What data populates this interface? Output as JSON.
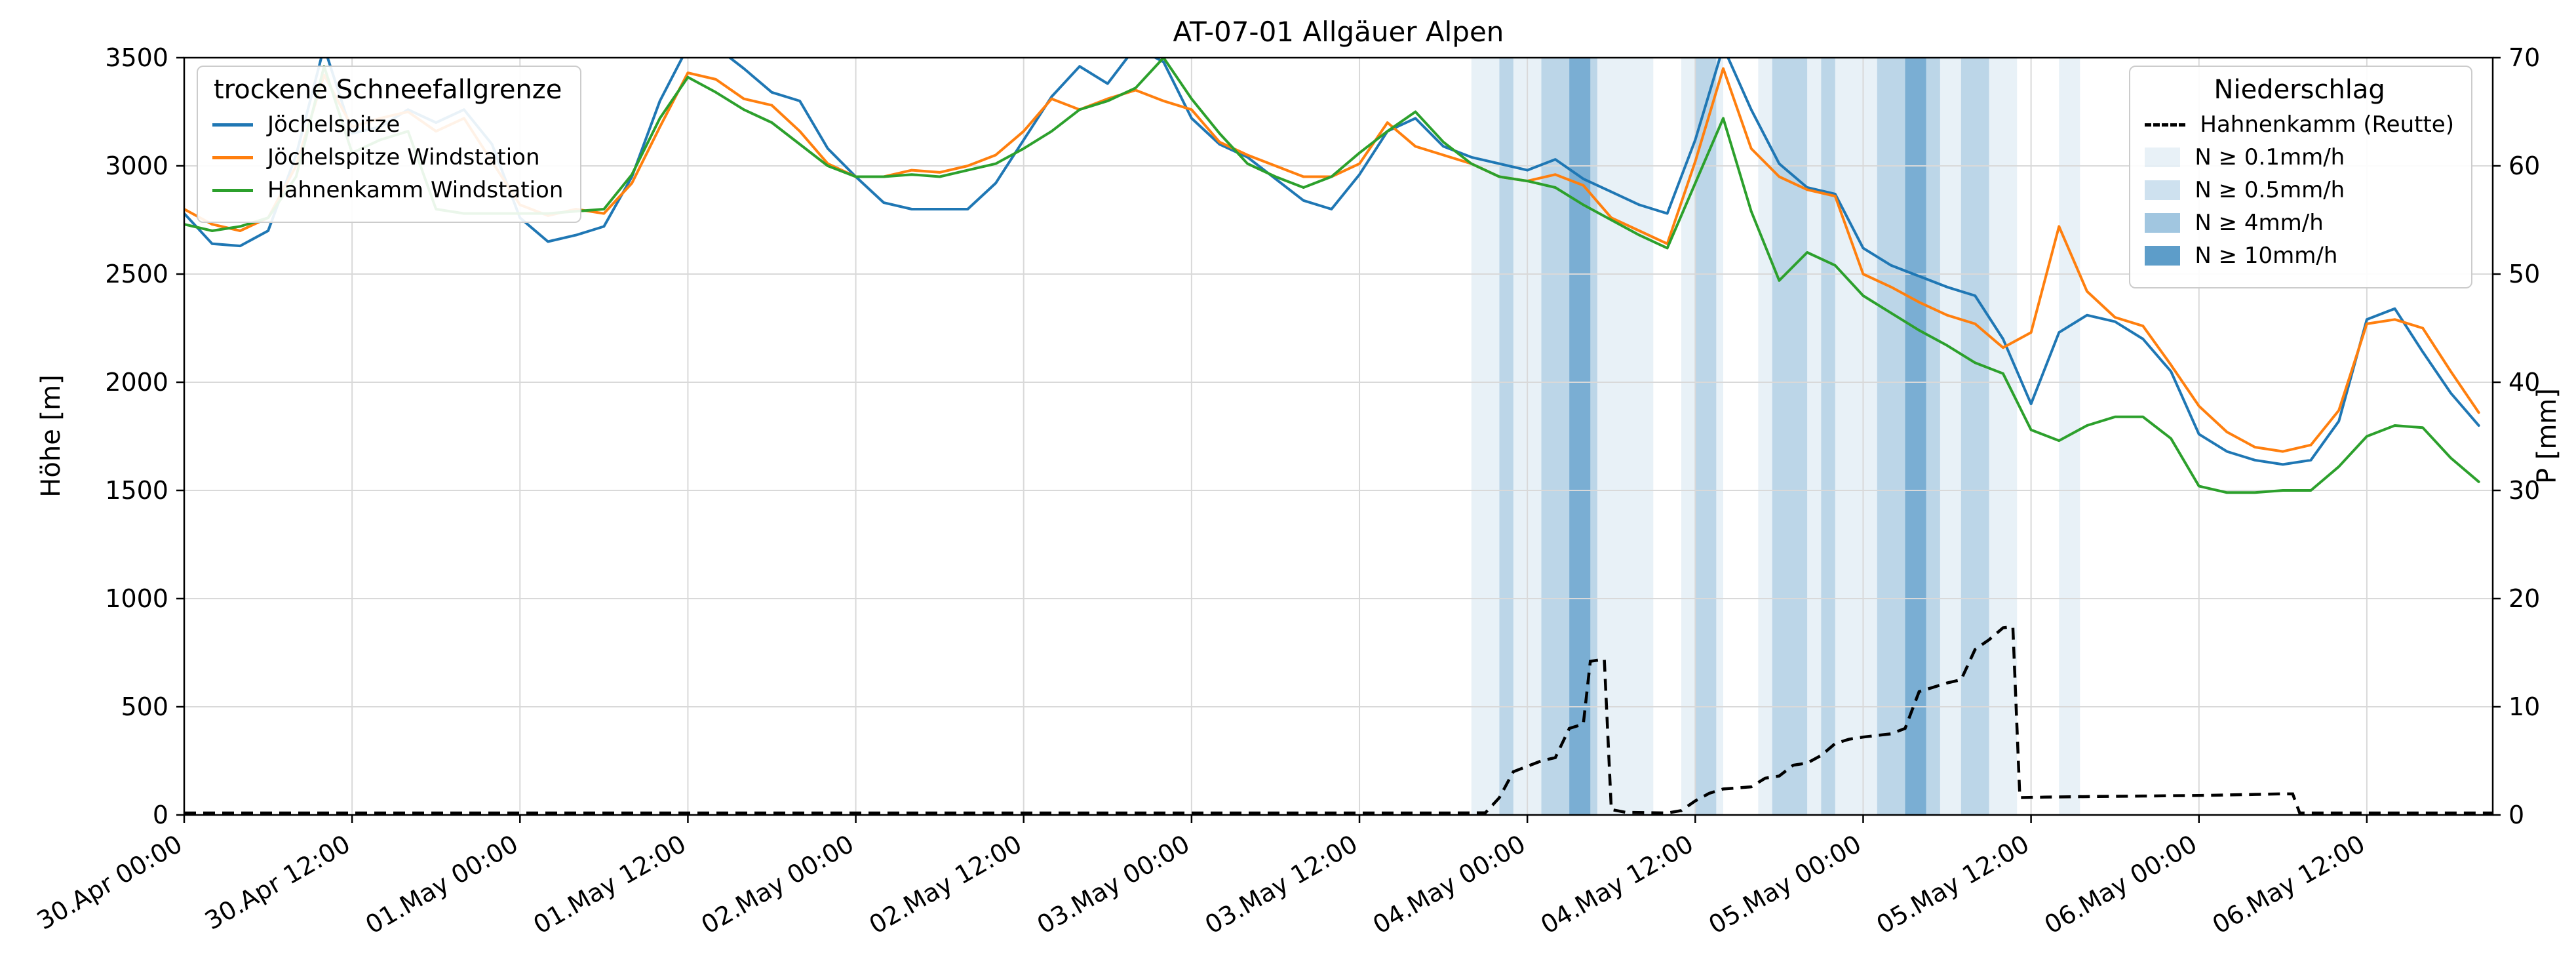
{
  "title": "AT-07-01 Allgäuer Alpen",
  "axes": {
    "y_left_label": "Höhe [m]",
    "y_right_label": "P [mm]",
    "y_left_range": [
      0,
      3500
    ],
    "y_right_range": [
      0,
      70
    ],
    "x_range": [
      0,
      165
    ],
    "y_left_ticks": [
      0,
      500,
      1000,
      1500,
      2000,
      2500,
      3000,
      3500
    ],
    "y_right_ticks": [
      0,
      10,
      20,
      30,
      40,
      50,
      60,
      70
    ],
    "x_tick_hours": [
      0,
      12,
      24,
      36,
      48,
      60,
      72,
      84,
      96,
      108,
      120,
      132,
      144,
      156
    ],
    "x_tick_labels": [
      "30.Apr 00:00",
      "30.Apr 12:00",
      "01.May 00:00",
      "01.May 12:00",
      "02.May 00:00",
      "02.May 12:00",
      "03.May 00:00",
      "03.May 12:00",
      "04.May 00:00",
      "04.May 12:00",
      "05.May 00:00",
      "05.May 12:00",
      "06.May 00:00",
      "06.May 12:00"
    ],
    "grid_color": "#d9d9d9"
  },
  "legend_left": {
    "title": "trockene Schneefallgrenze",
    "entries": [
      {
        "label": "Jöchelspitze",
        "color": "#1f77b4",
        "swatch": "line"
      },
      {
        "label": "Jöchelspitze Windstation",
        "color": "#ff7f0e",
        "swatch": "line"
      },
      {
        "label": "Hahnenkamm Windstation",
        "color": "#2ca02c",
        "swatch": "line"
      }
    ]
  },
  "legend_right": {
    "title": "Niederschlag",
    "entries": [
      {
        "label": "Hahnenkamm (Reutte)",
        "swatch": "dashed",
        "color": "#000000"
      },
      {
        "label": "N ≥ 0.1mm/h",
        "swatch": "patch",
        "level": "0.1"
      },
      {
        "label": "N ≥ 0.5mm/h",
        "swatch": "patch",
        "level": "0.5"
      },
      {
        "label": "N ≥ 4mm/h",
        "swatch": "patch",
        "level": "4"
      },
      {
        "label": "N ≥ 10mm/h",
        "swatch": "patch",
        "level": "10"
      }
    ]
  },
  "chart_data": {
    "type": "line",
    "title": "AT-07-01 Allgäuer Alpen",
    "xlabel": "",
    "ylabel_left": "Höhe [m]",
    "ylabel_right": "P [mm]",
    "x_unit": "hours since 30.Apr 00:00",
    "x_hours": [
      0,
      2,
      4,
      6,
      8,
      10,
      12,
      14,
      16,
      18,
      20,
      22,
      24,
      26,
      28,
      30,
      32,
      34,
      36,
      38,
      40,
      42,
      44,
      46,
      48,
      50,
      52,
      54,
      56,
      58,
      60,
      62,
      64,
      66,
      68,
      70,
      72,
      74,
      76,
      78,
      80,
      82,
      84,
      86,
      88,
      90,
      92,
      94,
      96,
      98,
      100,
      102,
      104,
      106,
      108,
      110,
      112,
      114,
      116,
      118,
      120,
      122,
      124,
      126,
      128,
      130,
      132,
      134,
      136,
      138,
      140,
      142,
      144,
      146,
      148,
      150,
      152,
      154,
      156,
      158,
      160,
      162,
      164
    ],
    "series": [
      {
        "name": "Jöchelspitze",
        "color": "#1f77b4",
        "values": [
          2780,
          2640,
          2630,
          2700,
          3050,
          3550,
          3150,
          3180,
          3260,
          3200,
          3260,
          3100,
          2760,
          2650,
          2680,
          2720,
          2950,
          3300,
          3550,
          3550,
          3450,
          3340,
          3300,
          3080,
          2950,
          2830,
          2800,
          2800,
          2800,
          2920,
          3120,
          3320,
          3460,
          3380,
          3550,
          3480,
          3220,
          3100,
          3040,
          2940,
          2840,
          2800,
          2960,
          3160,
          3220,
          3090,
          3040,
          3010,
          2980,
          3030,
          2940,
          2880,
          2820,
          2780,
          3120,
          3550,
          3260,
          3010,
          2900,
          2870,
          2620,
          2540,
          2490,
          2440,
          2400,
          2200,
          1900,
          2230,
          2310,
          2280,
          2200,
          2050,
          1760,
          1680,
          1640,
          1620,
          1640,
          1820,
          2290,
          2340,
          2140,
          1950,
          1800
        ]
      },
      {
        "name": "Jöchelspitze Windstation",
        "color": "#ff7f0e",
        "values": [
          2800,
          2730,
          2700,
          2760,
          3000,
          3420,
          3180,
          3220,
          3250,
          3160,
          3220,
          3020,
          2820,
          2770,
          2800,
          2780,
          2920,
          3180,
          3430,
          3400,
          3310,
          3280,
          3160,
          3010,
          2950,
          2950,
          2980,
          2970,
          3000,
          3050,
          3160,
          3310,
          3260,
          3310,
          3350,
          3300,
          3260,
          3110,
          3050,
          3000,
          2950,
          2950,
          3010,
          3200,
          3090,
          3050,
          3010,
          2950,
          2930,
          2960,
          2910,
          2760,
          2700,
          2640,
          3020,
          3450,
          3080,
          2950,
          2890,
          2860,
          2500,
          2440,
          2370,
          2310,
          2270,
          2160,
          2230,
          2720,
          2420,
          2300,
          2260,
          2080,
          1890,
          1770,
          1700,
          1680,
          1710,
          1870,
          2270,
          2290,
          2250,
          2050,
          1860
        ]
      },
      {
        "name": "Hahnenkamm Windstation",
        "color": "#2ca02c",
        "values": [
          2730,
          2700,
          2720,
          2760,
          2950,
          3460,
          3060,
          3120,
          3160,
          2800,
          2780,
          2780,
          2780,
          2780,
          2790,
          2800,
          2960,
          3220,
          3410,
          3340,
          3260,
          3200,
          3100,
          3000,
          2950,
          2950,
          2960,
          2950,
          2980,
          3010,
          3080,
          3160,
          3260,
          3300,
          3360,
          3500,
          3310,
          3150,
          3010,
          2950,
          2900,
          2950,
          3060,
          3160,
          3250,
          3110,
          3010,
          2950,
          2930,
          2900,
          2820,
          2750,
          2680,
          2620,
          2920,
          3220,
          2790,
          2470,
          2600,
          2540,
          2400,
          2320,
          2240,
          2170,
          2090,
          2040,
          1780,
          1730,
          1800,
          1840,
          1840,
          1740,
          1520,
          1490,
          1490,
          1500,
          1500,
          1610,
          1750,
          1800,
          1790,
          1650,
          1540
        ]
      }
    ],
    "precipitation_line": {
      "name": "Hahnenkamm (Reutte)",
      "color": "#000000",
      "style": "dashed",
      "axis": "right",
      "x": [
        0,
        90,
        93,
        94,
        95,
        96,
        97,
        98,
        99,
        100,
        100.5,
        101.5,
        102,
        103,
        106,
        107,
        108,
        109,
        110,
        112,
        113,
        114,
        115,
        116,
        117,
        118,
        119,
        120,
        122,
        123,
        124,
        125,
        126,
        127,
        128,
        129,
        130,
        130.7,
        131.2,
        133,
        136,
        140,
        144,
        148,
        150,
        150.7,
        151.2,
        165
      ],
      "values": [
        0,
        0,
        0.2,
        1.6,
        4.0,
        4.5,
        5.0,
        5.3,
        8.0,
        8.4,
        14.2,
        14.4,
        0.5,
        0.25,
        0.15,
        0.4,
        1.3,
        2.0,
        2.4,
        2.6,
        3.4,
        3.6,
        4.6,
        4.8,
        5.5,
        6.6,
        7.0,
        7.2,
        7.5,
        8.0,
        11.4,
        11.8,
        12.2,
        12.5,
        15.3,
        16.2,
        17.3,
        17.4,
        1.6,
        1.65,
        1.7,
        1.75,
        1.8,
        1.9,
        1.95,
        1.95,
        0.05,
        0.05
      ]
    },
    "precip_bands": [
      {
        "start": 92,
        "end": 105,
        "level": "0.1"
      },
      {
        "start": 94,
        "end": 95,
        "level": "0.5"
      },
      {
        "start": 97,
        "end": 101,
        "level": "0.5"
      },
      {
        "start": 99,
        "end": 100.5,
        "level": "4"
      },
      {
        "start": 107,
        "end": 110,
        "level": "0.1"
      },
      {
        "start": 108,
        "end": 109.5,
        "level": "0.5"
      },
      {
        "start": 112.5,
        "end": 120,
        "level": "0.1"
      },
      {
        "start": 113.5,
        "end": 116,
        "level": "0.5"
      },
      {
        "start": 117,
        "end": 118,
        "level": "0.5"
      },
      {
        "start": 120,
        "end": 131,
        "level": "0.1"
      },
      {
        "start": 121,
        "end": 125.5,
        "level": "0.5"
      },
      {
        "start": 123,
        "end": 124.5,
        "level": "4"
      },
      {
        "start": 127,
        "end": 129,
        "level": "0.5"
      },
      {
        "start": 134,
        "end": 135.5,
        "level": "0.1"
      }
    ],
    "band_colors": {
      "0.1": "rgba(31,119,180,0.10)",
      "0.5": "rgba(31,119,180,0.22)",
      "4": "rgba(31,119,180,0.42)",
      "10": "rgba(31,119,180,0.72)"
    }
  }
}
